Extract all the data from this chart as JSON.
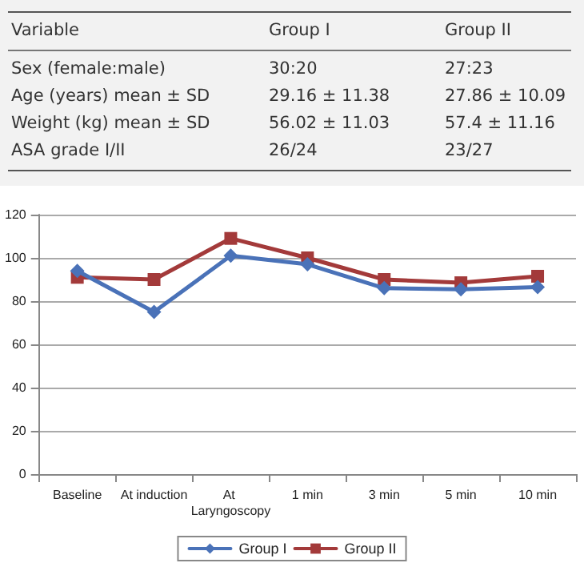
{
  "chart_data": [
    {
      "type": "other",
      "annotations": [
        "Variable",
        "Group I",
        "Group II",
        "Sex (female:male)",
        "30:20",
        "27:23",
        "Age (years) mean ± SD",
        "29.16 ± 11.38",
        "27.86 ± 10.09",
        "Weight (kg) mean ± SD",
        "56.02 ± 11.03",
        "57.4 ± 11.16",
        "ASA grade I/II",
        "26/24",
        "23/27"
      ]
    },
    {
      "type": "line",
      "categories": [
        "Baseline",
        "At induction",
        "At Laryngoscopy",
        "1 min",
        "3 min",
        "5 min",
        "10 min"
      ],
      "series": [
        {
          "name": "Group I",
          "color": "#4a72b8",
          "marker": "diamond",
          "values": [
            94,
            75,
            101,
            97,
            86,
            85.5,
            86.5
          ]
        },
        {
          "name": "Group II",
          "color": "#a33a3a",
          "marker": "square",
          "values": [
            91,
            90,
            109,
            100,
            90,
            88.5,
            91.5
          ]
        }
      ],
      "ylim": [
        0,
        120
      ],
      "yticks": [
        0,
        20,
        40,
        60,
        80,
        100,
        120
      ],
      "grid": "y",
      "legend": "bottom"
    }
  ]
}
